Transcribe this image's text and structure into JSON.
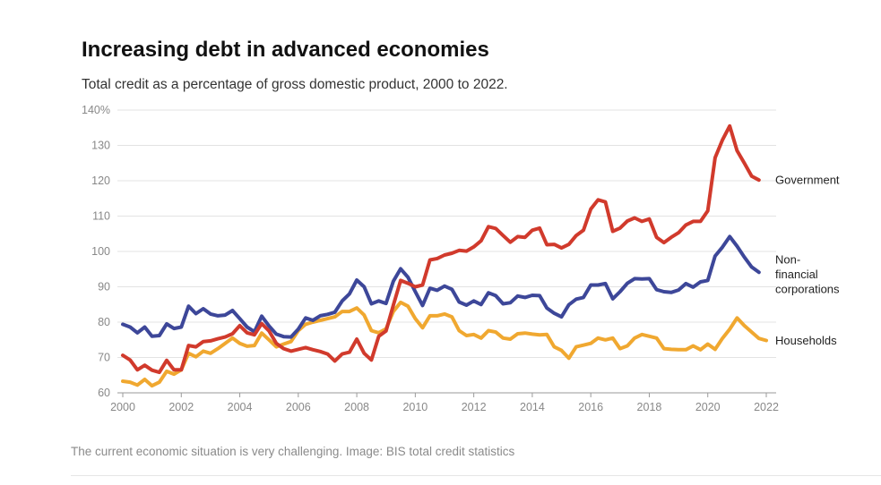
{
  "title": "Increasing debt in advanced economies",
  "subtitle": "Total credit as a percentage of gross domestic product, 2000 to 2022.",
  "caption": "The current economic situation is very challenging. Image: BIS total credit statistics",
  "chart_data": {
    "type": "line",
    "ylim": [
      60,
      140
    ],
    "xlim": [
      2000,
      2022
    ],
    "y_ticks": [
      60,
      70,
      80,
      90,
      100,
      110,
      120,
      130,
      140
    ],
    "y_tick_labels": [
      "60",
      "70",
      "80",
      "90",
      "100",
      "110",
      "120",
      "130",
      "140%"
    ],
    "x_ticks": [
      2000,
      2002,
      2004,
      2006,
      2008,
      2010,
      2012,
      2014,
      2016,
      2018,
      2020,
      2022
    ],
    "x_tick_labels": [
      "2000",
      "2002",
      "2004",
      "2006",
      "2008",
      "2010",
      "2012",
      "2014",
      "2016",
      "2018",
      "2020",
      "2022"
    ],
    "grid": true,
    "series": [
      {
        "name": "Households",
        "label_lines": [
          "Households"
        ],
        "color": "#f0a830",
        "points": [
          [
            2000.0,
            63.3
          ],
          [
            2000.25,
            63
          ],
          [
            2000.5,
            62.2
          ],
          [
            2000.75,
            63.8
          ],
          [
            2001.0,
            62
          ],
          [
            2001.25,
            63
          ],
          [
            2001.5,
            66.1
          ],
          [
            2001.75,
            65.3
          ],
          [
            2002.0,
            66.5
          ],
          [
            2002.25,
            71.2
          ],
          [
            2002.5,
            70.2
          ],
          [
            2002.75,
            71.8
          ],
          [
            2003.0,
            71.2
          ],
          [
            2003.25,
            72.5
          ],
          [
            2003.5,
            74
          ],
          [
            2003.75,
            75.5
          ],
          [
            2004.0,
            74
          ],
          [
            2004.25,
            73.2
          ],
          [
            2004.5,
            73.4
          ],
          [
            2004.75,
            76.9
          ],
          [
            2005.0,
            75
          ],
          [
            2005.25,
            73
          ],
          [
            2005.5,
            73.8
          ],
          [
            2005.75,
            74.5
          ],
          [
            2006.0,
            77.6
          ],
          [
            2006.25,
            79.4
          ],
          [
            2006.5,
            80
          ],
          [
            2006.75,
            80.5
          ],
          [
            2007.0,
            81
          ],
          [
            2007.25,
            81.5
          ],
          [
            2007.5,
            83
          ],
          [
            2007.75,
            83
          ],
          [
            2008.0,
            84
          ],
          [
            2008.25,
            82
          ],
          [
            2008.5,
            77.6
          ],
          [
            2008.75,
            77
          ],
          [
            2009.0,
            78.1
          ],
          [
            2009.25,
            83
          ],
          [
            2009.5,
            85.6
          ],
          [
            2009.75,
            84.5
          ],
          [
            2010.0,
            81
          ],
          [
            2010.25,
            78.4
          ],
          [
            2010.5,
            81.8
          ],
          [
            2010.75,
            81.8
          ],
          [
            2011.0,
            82.3
          ],
          [
            2011.25,
            81.5
          ],
          [
            2011.5,
            77.6
          ],
          [
            2011.75,
            76.2
          ],
          [
            2012.0,
            76.5
          ],
          [
            2012.25,
            75.5
          ],
          [
            2012.5,
            77.6
          ],
          [
            2012.75,
            77.2
          ],
          [
            2013.0,
            75.5
          ],
          [
            2013.25,
            75.2
          ],
          [
            2013.5,
            76.7
          ],
          [
            2013.75,
            76.9
          ],
          [
            2014.0,
            76.6
          ],
          [
            2014.25,
            76.4
          ],
          [
            2014.5,
            76.5
          ],
          [
            2014.75,
            73
          ],
          [
            2015.0,
            72
          ],
          [
            2015.25,
            69.8
          ],
          [
            2015.5,
            73
          ],
          [
            2015.75,
            73.5
          ],
          [
            2016.0,
            74
          ],
          [
            2016.25,
            75.5
          ],
          [
            2016.5,
            75
          ],
          [
            2016.75,
            75.5
          ],
          [
            2017.0,
            72.5
          ],
          [
            2017.25,
            73.3
          ],
          [
            2017.5,
            75.5
          ],
          [
            2017.75,
            76.5
          ],
          [
            2018.0,
            76
          ],
          [
            2018.25,
            75.5
          ],
          [
            2018.5,
            72.5
          ],
          [
            2018.75,
            72.3
          ],
          [
            2019.0,
            72.2
          ],
          [
            2019.25,
            72.2
          ],
          [
            2019.5,
            73.3
          ],
          [
            2019.75,
            72.2
          ],
          [
            2020.0,
            73.8
          ],
          [
            2020.25,
            72.3
          ],
          [
            2020.5,
            75.4
          ],
          [
            2020.75,
            78
          ],
          [
            2021.0,
            81.2
          ],
          [
            2021.25,
            79
          ],
          [
            2021.5,
            77.2
          ],
          [
            2021.75,
            75.4
          ],
          [
            2022.0,
            74.8
          ]
        ]
      },
      {
        "name": "Non-financial corporations",
        "label_lines": [
          "Non-",
          "financial",
          "corporations"
        ],
        "color": "#3d4799",
        "points": [
          [
            2000.0,
            79.4
          ],
          [
            2000.25,
            78.6
          ],
          [
            2000.5,
            77
          ],
          [
            2000.75,
            78.6
          ],
          [
            2001.0,
            76
          ],
          [
            2001.25,
            76.2
          ],
          [
            2001.5,
            79.5
          ],
          [
            2001.75,
            78.2
          ],
          [
            2002.0,
            78.6
          ],
          [
            2002.25,
            84.5
          ],
          [
            2002.5,
            82.4
          ],
          [
            2002.75,
            83.8
          ],
          [
            2003.0,
            82.3
          ],
          [
            2003.25,
            81.8
          ],
          [
            2003.5,
            82
          ],
          [
            2003.75,
            83.3
          ],
          [
            2004.0,
            81
          ],
          [
            2004.25,
            78.6
          ],
          [
            2004.5,
            77.3
          ],
          [
            2004.75,
            81.7
          ],
          [
            2005.0,
            78.9
          ],
          [
            2005.25,
            76.6
          ],
          [
            2005.5,
            75.9
          ],
          [
            2005.75,
            75.8
          ],
          [
            2006.0,
            78
          ],
          [
            2006.25,
            81.2
          ],
          [
            2006.5,
            80.5
          ],
          [
            2006.75,
            81.8
          ],
          [
            2007.0,
            82.2
          ],
          [
            2007.25,
            82.8
          ],
          [
            2007.5,
            86
          ],
          [
            2007.75,
            88
          ],
          [
            2008.0,
            91.9
          ],
          [
            2008.25,
            90
          ],
          [
            2008.5,
            85.2
          ],
          [
            2008.75,
            86
          ],
          [
            2009.0,
            85.3
          ],
          [
            2009.25,
            91.6
          ],
          [
            2009.5,
            95.1
          ],
          [
            2009.75,
            92.7
          ],
          [
            2010.0,
            88.6
          ],
          [
            2010.25,
            84.7
          ],
          [
            2010.5,
            89.6
          ],
          [
            2010.75,
            89
          ],
          [
            2011.0,
            90.2
          ],
          [
            2011.25,
            89.3
          ],
          [
            2011.5,
            85.7
          ],
          [
            2011.75,
            84.8
          ],
          [
            2012.0,
            86
          ],
          [
            2012.25,
            85
          ],
          [
            2012.5,
            88.3
          ],
          [
            2012.75,
            87.5
          ],
          [
            2013.0,
            85.2
          ],
          [
            2013.25,
            85.5
          ],
          [
            2013.5,
            87.4
          ],
          [
            2013.75,
            87
          ],
          [
            2014.0,
            87.6
          ],
          [
            2014.25,
            87.5
          ],
          [
            2014.5,
            84
          ],
          [
            2014.75,
            82.5
          ],
          [
            2015.0,
            81.5
          ],
          [
            2015.25,
            84.9
          ],
          [
            2015.5,
            86.5
          ],
          [
            2015.75,
            87
          ],
          [
            2016.0,
            90.5
          ],
          [
            2016.25,
            90.5
          ],
          [
            2016.5,
            90.9
          ],
          [
            2016.75,
            86.6
          ],
          [
            2017.0,
            88.6
          ],
          [
            2017.25,
            91
          ],
          [
            2017.5,
            92.3
          ],
          [
            2017.75,
            92.2
          ],
          [
            2018.0,
            92.3
          ],
          [
            2018.25,
            89.2
          ],
          [
            2018.5,
            88.6
          ],
          [
            2018.75,
            88.4
          ],
          [
            2019.0,
            89.1
          ],
          [
            2019.25,
            90.9
          ],
          [
            2019.5,
            89.9
          ],
          [
            2019.75,
            91.4
          ],
          [
            2020.0,
            91.8
          ],
          [
            2020.25,
            98.7
          ],
          [
            2020.5,
            101.2
          ],
          [
            2020.75,
            104.2
          ],
          [
            2021.0,
            101.5
          ],
          [
            2021.25,
            98.4
          ],
          [
            2021.5,
            95.6
          ],
          [
            2021.75,
            94.1
          ]
        ]
      },
      {
        "name": "Government",
        "label_lines": [
          "Government"
        ],
        "color": "#d13a2c",
        "points": [
          [
            2000.0,
            70.6
          ],
          [
            2000.25,
            69.3
          ],
          [
            2000.5,
            66.5
          ],
          [
            2000.75,
            67.8
          ],
          [
            2001.0,
            66.4
          ],
          [
            2001.25,
            65.8
          ],
          [
            2001.5,
            69.2
          ],
          [
            2001.75,
            66.5
          ],
          [
            2002.0,
            66.5
          ],
          [
            2002.25,
            73.4
          ],
          [
            2002.5,
            73
          ],
          [
            2002.75,
            74.5
          ],
          [
            2003.0,
            74.7
          ],
          [
            2003.25,
            75.3
          ],
          [
            2003.5,
            75.8
          ],
          [
            2003.75,
            76.7
          ],
          [
            2004.0,
            79
          ],
          [
            2004.25,
            77
          ],
          [
            2004.5,
            76.4
          ],
          [
            2004.75,
            79.6
          ],
          [
            2005.0,
            77.5
          ],
          [
            2005.25,
            74
          ],
          [
            2005.5,
            72.5
          ],
          [
            2005.75,
            71.8
          ],
          [
            2006.0,
            72.3
          ],
          [
            2006.25,
            72.8
          ],
          [
            2006.5,
            72.2
          ],
          [
            2006.75,
            71.7
          ],
          [
            2007.0,
            71
          ],
          [
            2007.25,
            69
          ],
          [
            2007.5,
            71
          ],
          [
            2007.75,
            71.5
          ],
          [
            2008.0,
            75.2
          ],
          [
            2008.25,
            71.2
          ],
          [
            2008.5,
            69.3
          ],
          [
            2008.75,
            76
          ],
          [
            2009.0,
            77.5
          ],
          [
            2009.25,
            84.8
          ],
          [
            2009.5,
            91.8
          ],
          [
            2009.75,
            91
          ],
          [
            2010.0,
            90
          ],
          [
            2010.25,
            90.5
          ],
          [
            2010.5,
            97.6
          ],
          [
            2010.75,
            98
          ],
          [
            2011.0,
            99
          ],
          [
            2011.25,
            99.5
          ],
          [
            2011.5,
            100.3
          ],
          [
            2011.75,
            100.1
          ],
          [
            2012.0,
            101.3
          ],
          [
            2012.25,
            103
          ],
          [
            2012.5,
            107
          ],
          [
            2012.75,
            106.5
          ],
          [
            2013.0,
            104.5
          ],
          [
            2013.25,
            102.6
          ],
          [
            2013.5,
            104.2
          ],
          [
            2013.75,
            104
          ],
          [
            2014.0,
            106
          ],
          [
            2014.25,
            106.6
          ],
          [
            2014.5,
            101.9
          ],
          [
            2014.75,
            102
          ],
          [
            2015.0,
            101
          ],
          [
            2015.25,
            102
          ],
          [
            2015.5,
            104.5
          ],
          [
            2015.75,
            106
          ],
          [
            2016.0,
            112
          ],
          [
            2016.25,
            114.6
          ],
          [
            2016.5,
            114
          ],
          [
            2016.75,
            105.7
          ],
          [
            2017.0,
            106.6
          ],
          [
            2017.25,
            108.6
          ],
          [
            2017.5,
            109.5
          ],
          [
            2017.75,
            108.5
          ],
          [
            2018.0,
            109.2
          ],
          [
            2018.25,
            104
          ],
          [
            2018.5,
            102.5
          ],
          [
            2018.75,
            104
          ],
          [
            2019.0,
            105.3
          ],
          [
            2019.25,
            107.5
          ],
          [
            2019.5,
            108.5
          ],
          [
            2019.75,
            108.5
          ],
          [
            2020.0,
            111.5
          ],
          [
            2020.25,
            126.5
          ],
          [
            2020.5,
            131.5
          ],
          [
            2020.75,
            135.5
          ],
          [
            2021.0,
            128.5
          ],
          [
            2021.25,
            125
          ],
          [
            2021.5,
            121.3
          ],
          [
            2021.75,
            120.2
          ]
        ]
      }
    ]
  }
}
